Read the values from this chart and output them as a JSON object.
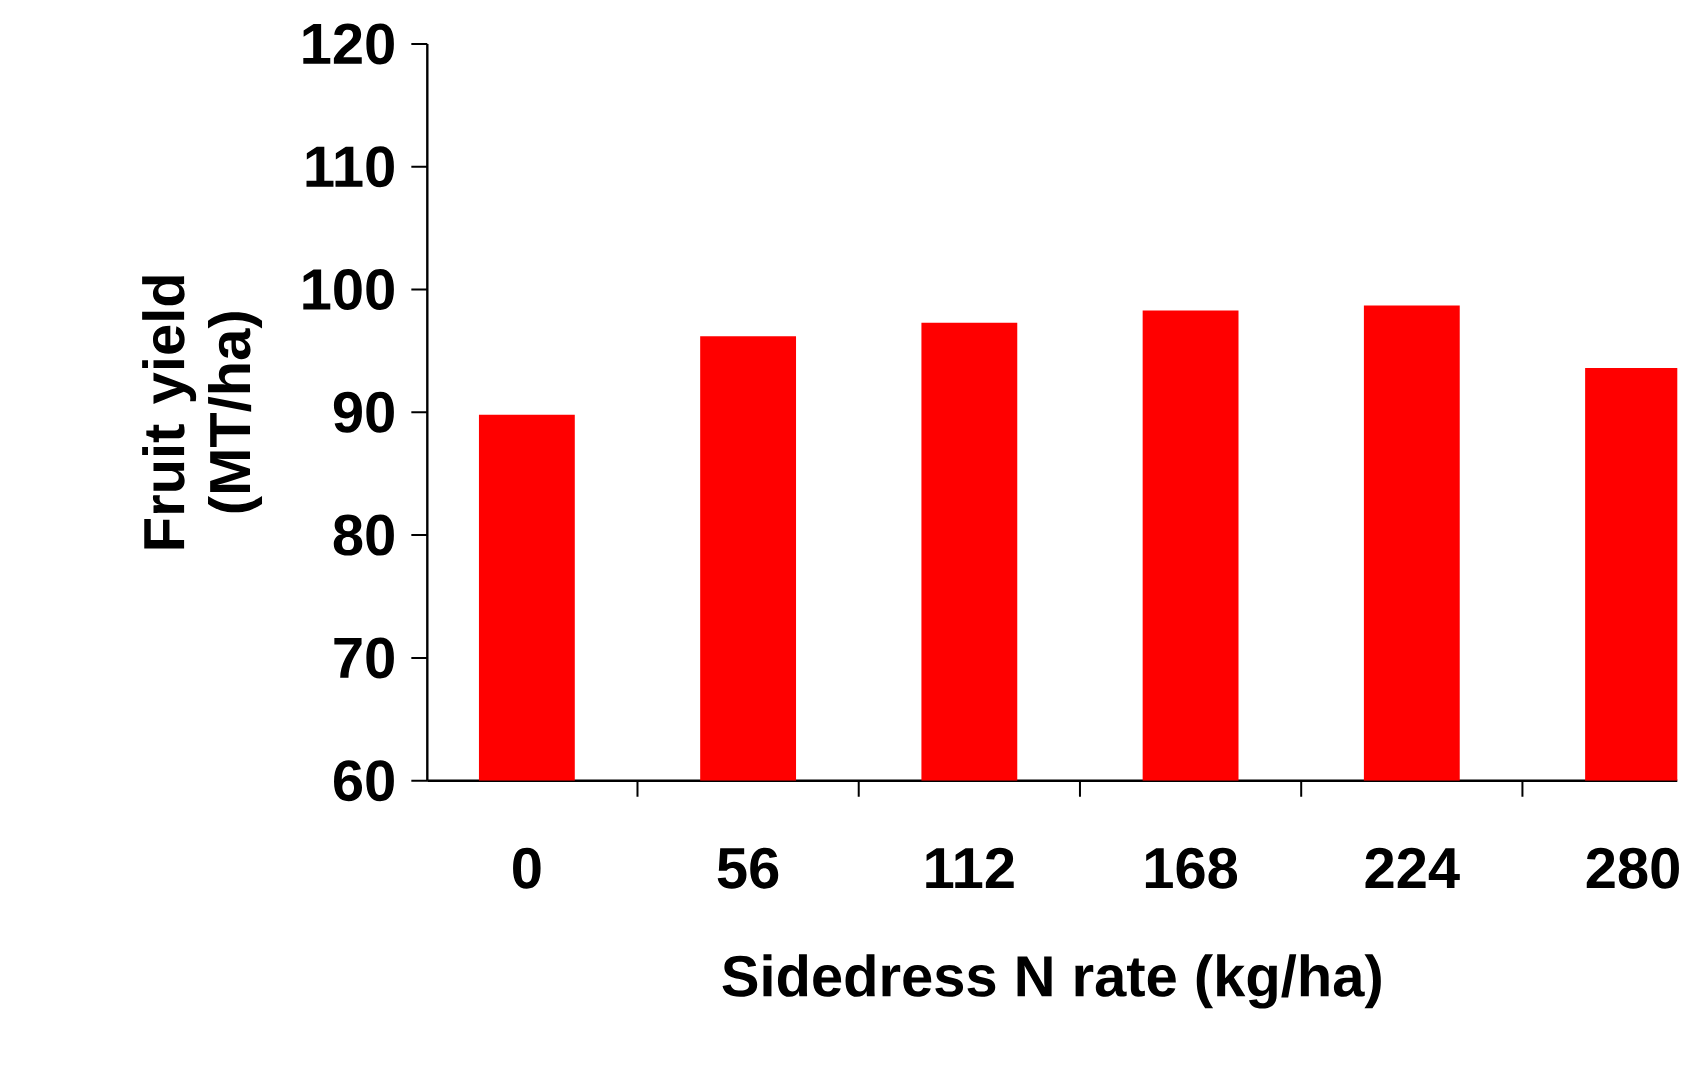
{
  "chart_data": {
    "type": "bar",
    "xlabel": "Sidedress N rate (kg/ha)",
    "ylabel": "Fruit yield (MT/ha)",
    "categories": [
      "0",
      "56",
      "112",
      "168",
      "224",
      "280"
    ],
    "values": [
      89.8,
      96.2,
      97.3,
      98.3,
      98.7,
      93.6
    ],
    "color": "#ff0000",
    "ylim": [
      60,
      120
    ],
    "yticks": [
      60,
      70,
      80,
      90,
      100,
      110,
      120
    ],
    "grid": false
  }
}
